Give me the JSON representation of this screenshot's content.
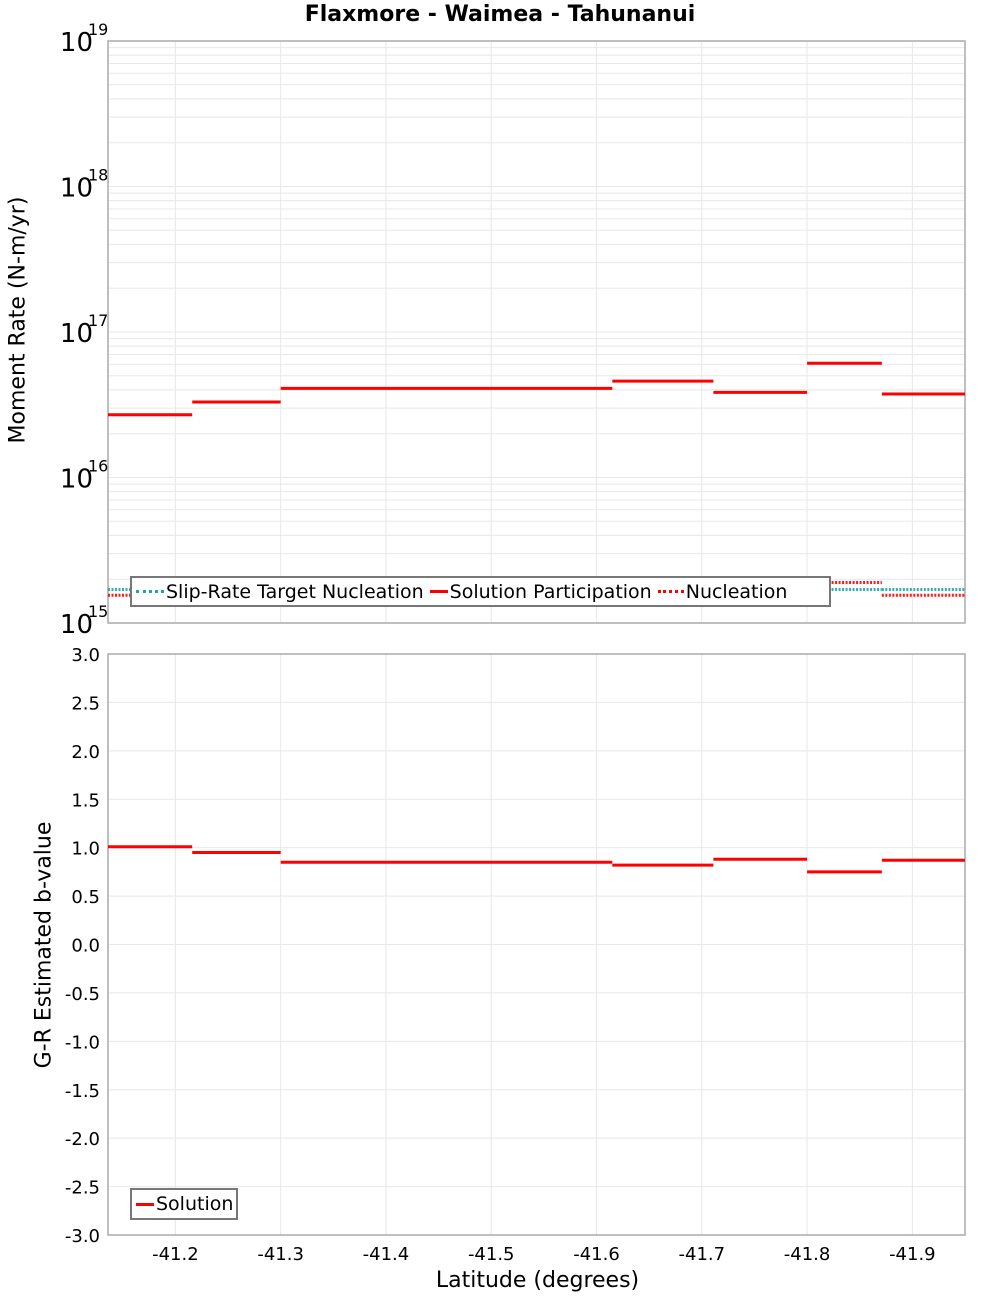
{
  "title": "Flaxmore - Waimea - Tahunanui",
  "colors": {
    "solution": "#ff0000",
    "target": "#1fa5a8",
    "grid": "#e8e8e8",
    "axis": "#aaaaaa"
  },
  "top_panel": {
    "ylabel": "Moment Rate (N-m/yr)",
    "yticks": [
      {
        "base": "10",
        "exp": "19"
      },
      {
        "base": "10",
        "exp": "18"
      },
      {
        "base": "10",
        "exp": "17"
      },
      {
        "base": "10",
        "exp": "16"
      },
      {
        "base": "10",
        "exp": "15"
      }
    ],
    "legend": {
      "items": [
        {
          "label": "Slip-Rate Target Nucleation",
          "style": "dotted-teal"
        },
        {
          "label": "Solution Participation",
          "style": "solid-red"
        },
        {
          "label": "Nucleation",
          "style": "dotted-red"
        }
      ]
    }
  },
  "bottom_panel": {
    "ylabel": "G-R Estimated b-value",
    "yticks": [
      "3.0",
      "2.5",
      "2.0",
      "1.5",
      "1.0",
      "0.5",
      "0.0",
      "-0.5",
      "-1.0",
      "-1.5",
      "-2.0",
      "-2.5",
      "-3.0"
    ],
    "legend": {
      "items": [
        {
          "label": "Solution",
          "style": "solid-red"
        }
      ]
    }
  },
  "xaxis": {
    "label": "Latitude (degrees)",
    "ticks": [
      "-41.2",
      "-41.3",
      "-41.4",
      "-41.5",
      "-41.6",
      "-41.7",
      "-41.8",
      "-41.9"
    ]
  },
  "chart_data": [
    {
      "type": "line",
      "title": "Flaxmore - Waimea - Tahunanui",
      "xlabel": "Latitude (degrees)",
      "ylabel": "Moment Rate (N-m/yr)",
      "yscale": "log",
      "ylim": [
        1000000000000000.0,
        1e+19
      ],
      "xlim": [
        -41.136,
        -41.95
      ],
      "grid": true,
      "legend_position": "bottom-left inside",
      "segments_x": [
        -41.136,
        -41.216,
        -41.3,
        -41.615,
        -41.711,
        -41.8,
        -41.871,
        -41.95
      ],
      "series": [
        {
          "name": "Solution Participation",
          "style": "solid",
          "color": "#ff0000",
          "values": [
            2.7e+16,
            3.3e+16,
            4.1e+16,
            4.6e+16,
            3.85e+16,
            6.1e+16,
            3.75e+16
          ]
        },
        {
          "name": "Slip-Rate Target Nucleation",
          "style": "dotted",
          "color": "#1fa5a8",
          "values": [
            1700000000000000.0,
            1700000000000000.0,
            1700000000000000.0,
            1700000000000000.0,
            1700000000000000.0,
            1700000000000000.0,
            1700000000000000.0
          ]
        },
        {
          "name": "Nucleation",
          "style": "dotted",
          "color": "#ff0000",
          "values": [
            1550000000000000.0,
            1900000000000000.0,
            1700000000000000.0,
            1900000000000000.0,
            1750000000000000.0,
            1900000000000000.0,
            1550000000000000.0
          ]
        }
      ]
    },
    {
      "type": "line",
      "xlabel": "Latitude (degrees)",
      "ylabel": "G-R Estimated b-value",
      "ylim": [
        -3.0,
        3.0
      ],
      "xlim": [
        -41.136,
        -41.95
      ],
      "grid": true,
      "legend_position": "bottom-left inside",
      "segments_x": [
        -41.136,
        -41.216,
        -41.3,
        -41.615,
        -41.711,
        -41.8,
        -41.871,
        -41.95
      ],
      "series": [
        {
          "name": "Solution",
          "style": "solid",
          "color": "#ff0000",
          "values": [
            1.01,
            0.95,
            0.85,
            0.82,
            0.88,
            0.75,
            0.87
          ]
        }
      ]
    }
  ]
}
